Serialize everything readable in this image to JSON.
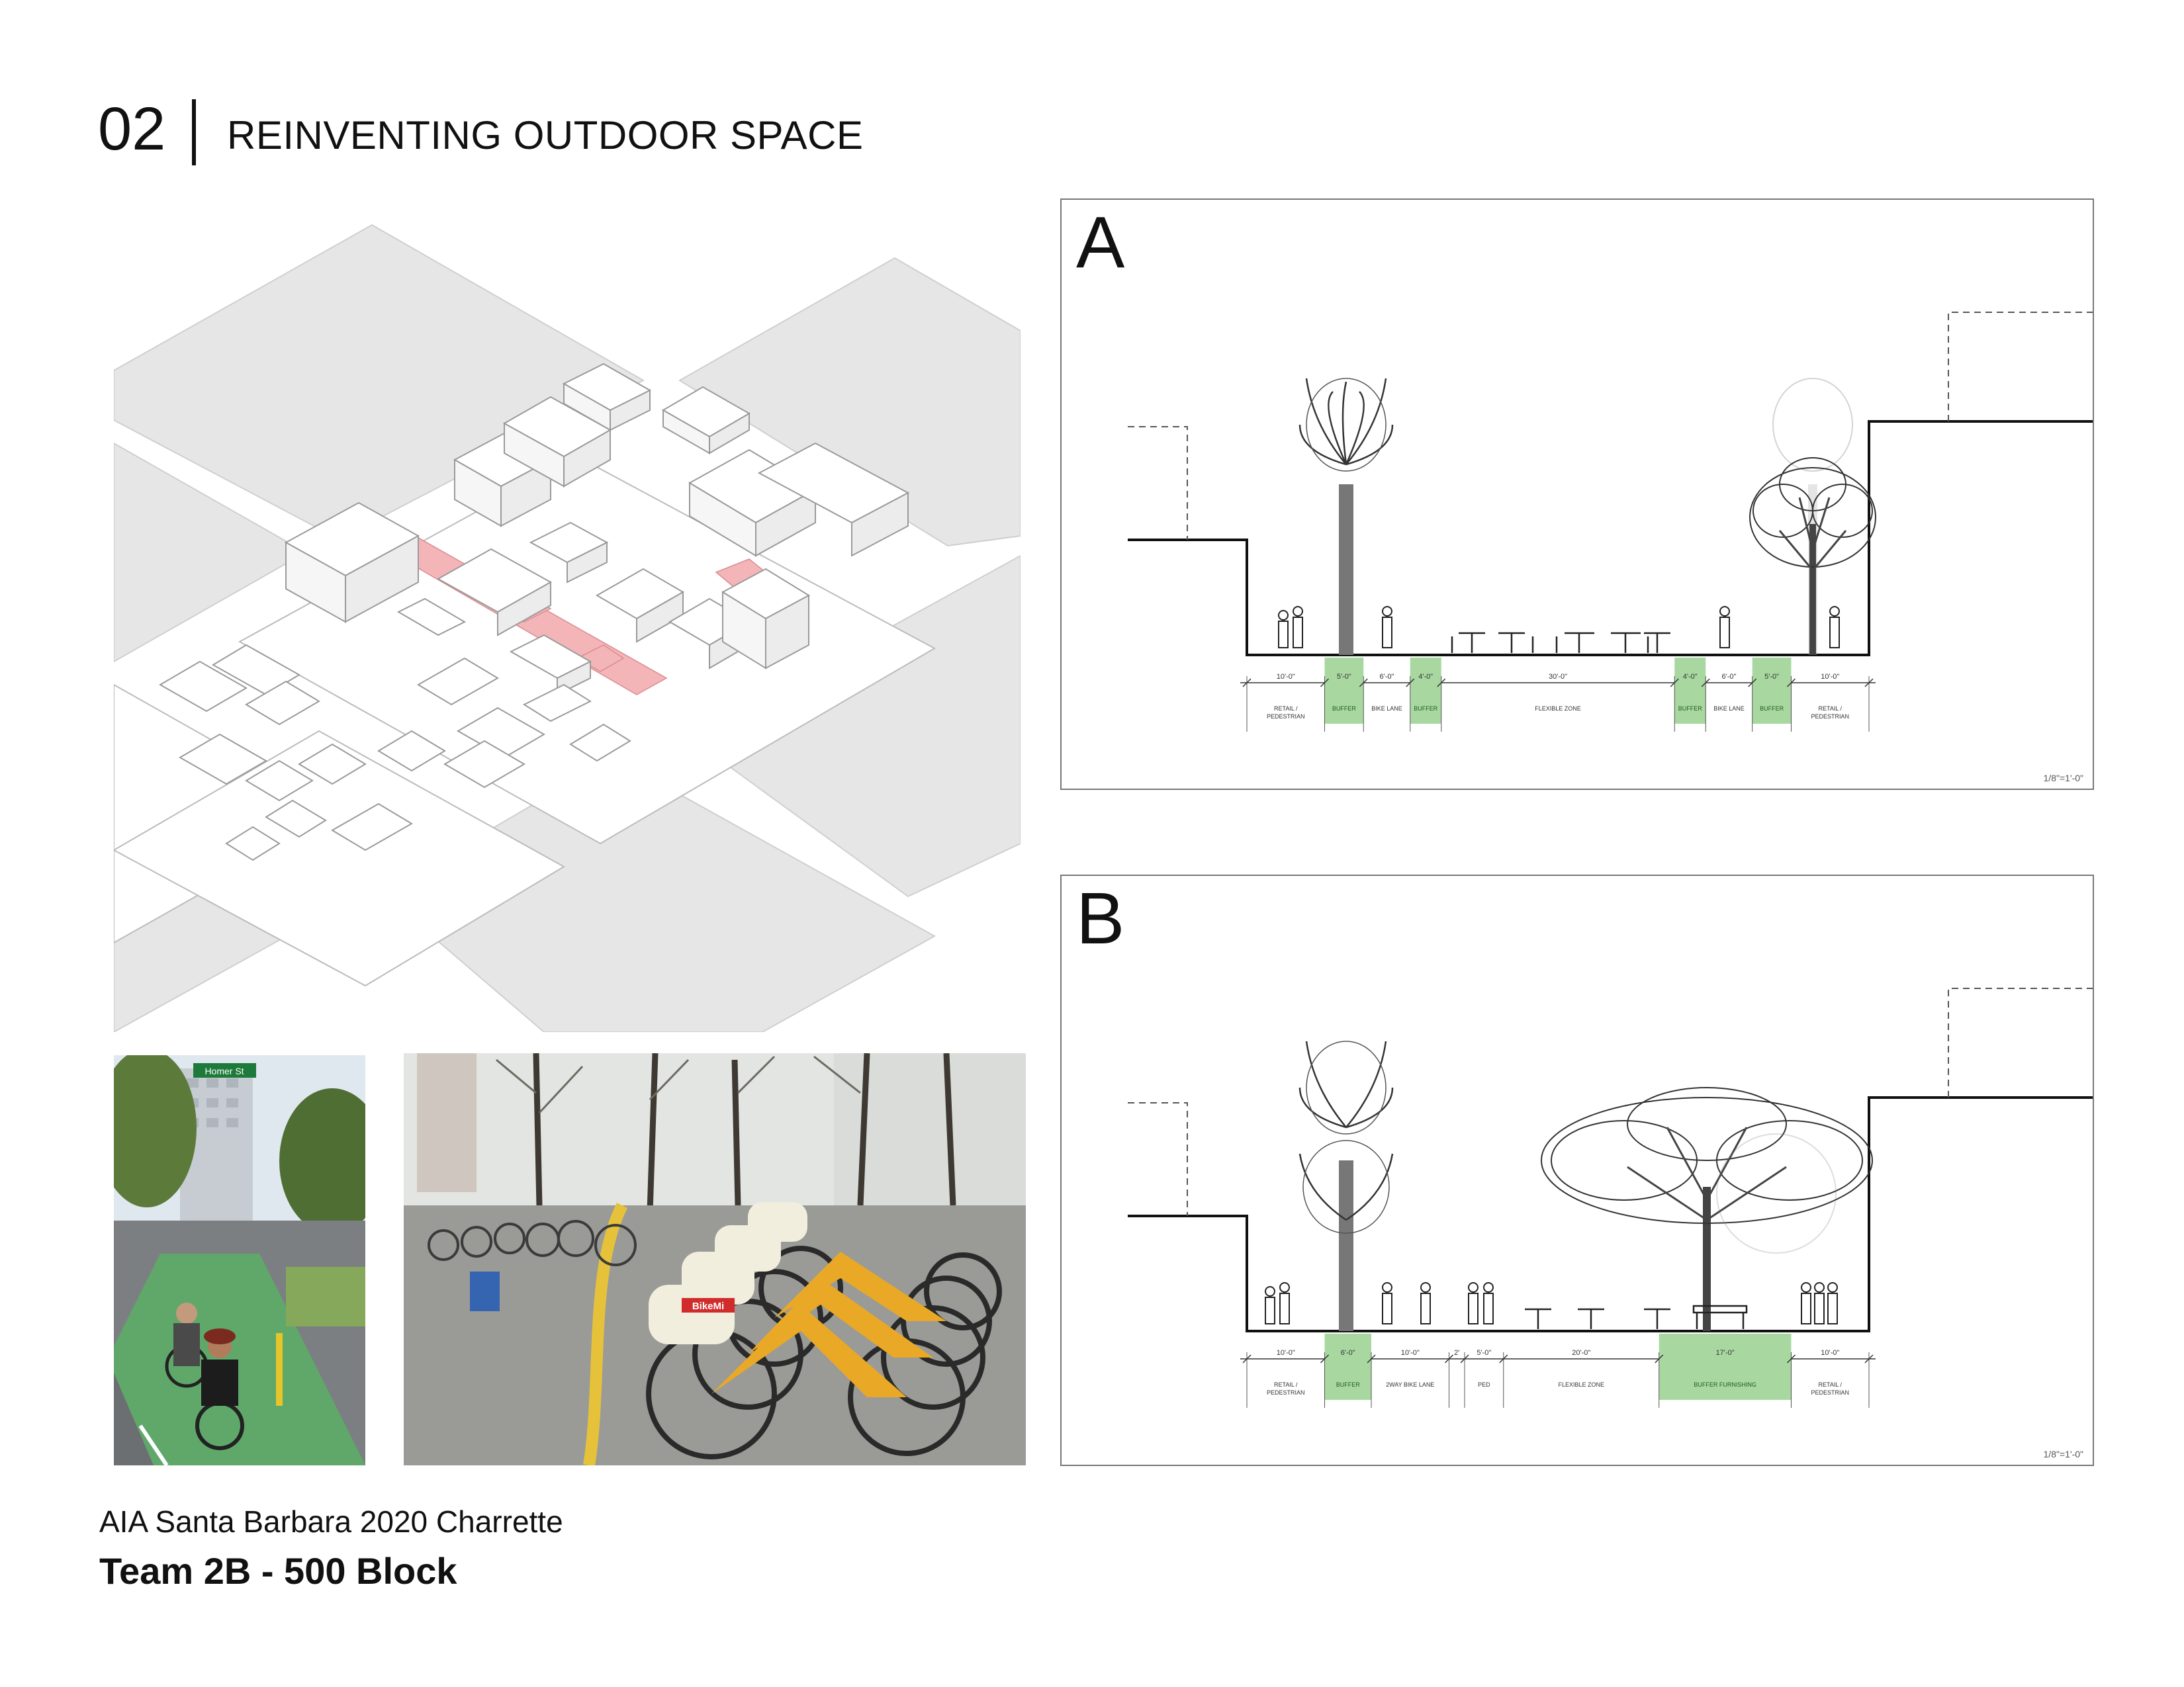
{
  "header": {
    "number": "02",
    "title": "REINVENTING OUTDOOR SPACE"
  },
  "footer": {
    "line1": "AIA Santa Barbara 2020 Charrette",
    "line2": "Team 2B - 500 Block"
  },
  "colors": {
    "highlight_pink": "#f4b5b8",
    "buffer_green": "#a8d8a0",
    "block_gray": "#e6e6e6",
    "line": "#111111"
  },
  "photos": {
    "left_photo_icon": "cyclists-on-green-bike-lane-photo",
    "left_photo_street_sign": "Homer St",
    "right_photo_icon": "bike-share-station-photo",
    "right_photo_bike_sticker": "BikeMi"
  },
  "section_a": {
    "letter": "A",
    "scale": "1/8\"=1'-0\"",
    "dims": [
      "10'-0\"",
      "5'-0\"",
      "6'-0\"",
      "4'-0\"",
      "30'-0\"",
      "4'-0\"",
      "6'-0\"",
      "5'-0\"",
      "10'-0\""
    ],
    "zones": [
      {
        "label": "RETAIL / PEDESTRIAN",
        "green": false
      },
      {
        "label": "BUFFER",
        "green": true
      },
      {
        "label": "BIKE LANE",
        "green": false
      },
      {
        "label": "BUFFER",
        "green": true
      },
      {
        "label": "FLEXIBLE ZONE",
        "green": false
      },
      {
        "label": "BUFFER",
        "green": true
      },
      {
        "label": "BIKE LANE",
        "green": false
      },
      {
        "label": "BUFFER",
        "green": true
      },
      {
        "label": "RETAIL / PEDESTRIAN",
        "green": false
      }
    ]
  },
  "section_b": {
    "letter": "B",
    "scale": "1/8\"=1'-0\"",
    "dims": [
      "10'-0\"",
      "6'-0\"",
      "10'-0\"",
      "2'",
      "5'-0\"",
      "20'-0\"",
      "17'-0\"",
      "10'-0\""
    ],
    "zones": [
      {
        "label": "RETAIL / PEDESTRIAN",
        "green": false
      },
      {
        "label": "BUFFER",
        "green": true
      },
      {
        "label": "2WAY BIKE LANE",
        "green": false
      },
      {
        "label": "",
        "green": false
      },
      {
        "label": "PED",
        "green": false
      },
      {
        "label": "FLEXIBLE ZONE",
        "green": false
      },
      {
        "label": "BUFFER FURNISHING",
        "green": true
      },
      {
        "label": "RETAIL / PEDESTRIAN",
        "green": false
      }
    ]
  }
}
